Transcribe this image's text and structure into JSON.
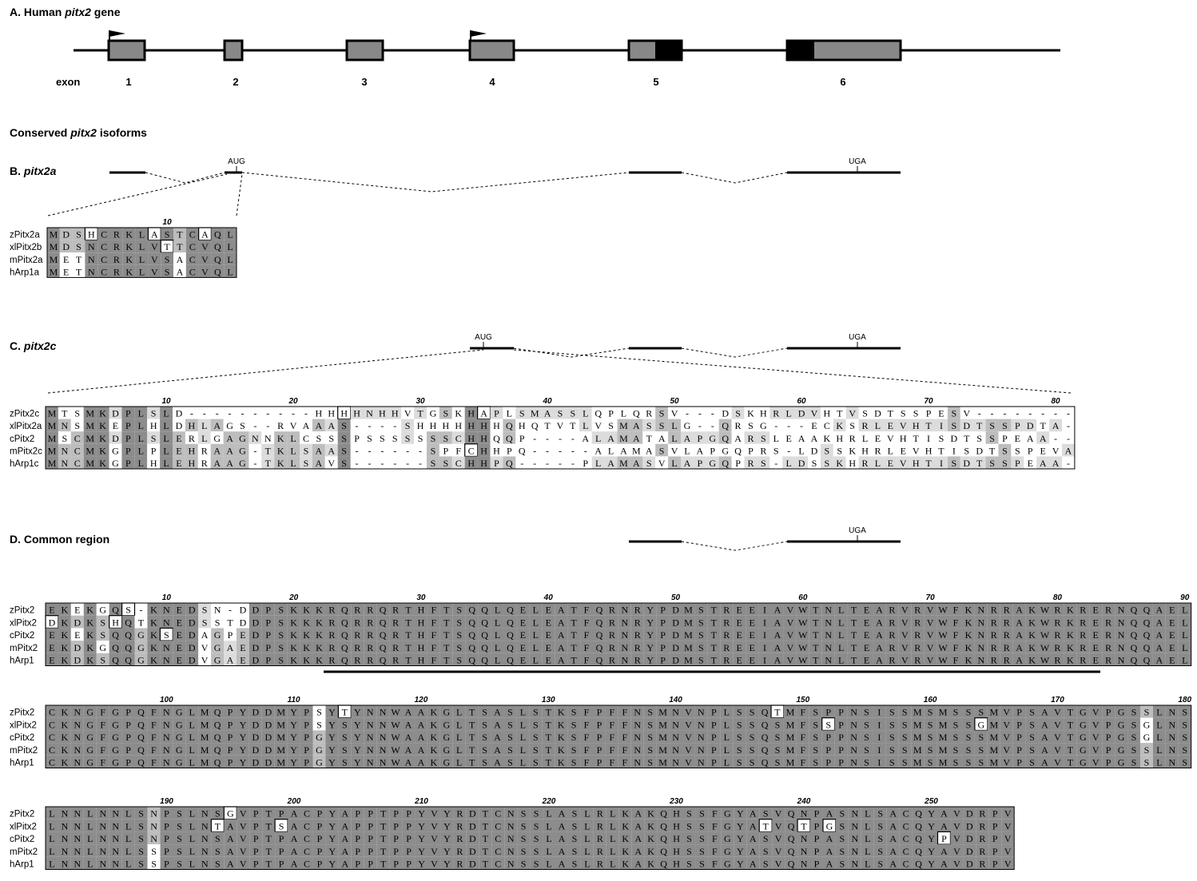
{
  "figure": {
    "panelA": {
      "letter": "A.",
      "title_pre": "Human ",
      "title_italic": "pitx2",
      "title_post": " gene",
      "exon_label": "exon",
      "exons": [
        "1",
        "2",
        "3",
        "4",
        "5",
        "6"
      ]
    },
    "conserved_heading_pre": "Conserved ",
    "conserved_heading_italic": "pitx2",
    "conserved_heading_post": " isoforms",
    "panelB": {
      "letter": "B.",
      "title_italic": "pitx2a",
      "start": "AUG",
      "stop": "UGA"
    },
    "panelC": {
      "letter": "C.",
      "title_italic": "pitx2c",
      "start": "AUG",
      "stop": "UGA"
    },
    "panelD": {
      "letter": "D.",
      "title": "Common region",
      "stop": "UGA"
    }
  },
  "alignments": {
    "pitx2a": {
      "rulers": [
        "10"
      ],
      "rows": [
        {
          "name": "zPitx2a",
          "seq": "MDSHCRKLASTCAQL"
        },
        {
          "name": "xlPitx2b",
          "seq": "MDSNCRKLVTTCVQL"
        },
        {
          "name": "mPitx2a",
          "seq": "METNCRKLVSACVQL"
        },
        {
          "name": "hArp1a",
          "seq": "METNCRKLVSACVQL"
        }
      ]
    },
    "pitx2c": {
      "rulers": [
        "10",
        "20",
        "30",
        "40",
        "50",
        "60",
        "70",
        "80"
      ],
      "rows": [
        {
          "name": "zPitx2c",
          "seq": "MTSMKDPLSLD----------HHHHNHHVTGSKHAPLSMASSLQPLQRSV---DSKHRLDVHTVSDTSSPESV"
        },
        {
          "name": "xlPitx2a",
          "seq": "MNSMKEPLHLDHLAGS--RVAAAS----SHHHHHHHQHQTVTLVSMASSLG--QRSG---ECKSRLEVHTISDTSSPDTA"
        },
        {
          "name": "cPitx2",
          "seq": "MSCMKDPLSLERLGAGNNKLCSSSPSSSSSSSCHHQQP----ALAMATALAPGQARSLEAAKHRLEVHTISDTSSPEAA"
        },
        {
          "name": "mPitx2c",
          "seq": "MNCMKGPLPLEHRAAG-TKLSAAS------SPFCHHPQ-----ALAMASVLAPGQPRS-LDSSKHRLEVHTISDTSSPEVA"
        },
        {
          "name": "hArp1c",
          "seq": "MNCMKGPLHLEHRAAG-TKLSAVS------SSCHHPQ-----PLAMASVLAPGQPRS-LDSSKHRLEVHTISDTSSPEAA"
        }
      ]
    },
    "common1": {
      "rulers": [
        "10",
        "20",
        "30",
        "40",
        "50",
        "60",
        "70",
        "80",
        "90"
      ],
      "rows": [
        {
          "name": "zPitx2",
          "seq": "EKEKGQS-KNEDSN-DDPSKKKRQRRQRTHFTSQQLQELEATFQRNRYPDMSTREEIAVWTNLTEARVRVWFKNRRAKWRKRERNQQAEL"
        },
        {
          "name": "xlPitx2",
          "seq": "DKDKSHQTKNEDSSTDDPSKKKRQRRQRTHFTSQQLQELEATFQRNRYPDMSTREEIAVWTNLTEARVRVWFKNRRAKWRKRERNQQAEL"
        },
        {
          "name": "cPitx2",
          "seq": "EKEKSQQGKSEDAGPEDPSKKKRQRRQRTHFTSQQLQELEATFQRNRYPDMSTREEIAVWTNLTEARVRVWFKNRRAKWRKRERNQQAEL"
        },
        {
          "name": "mPitx2",
          "seq": "EKDKGQQGKNEDVGAEDPSKKKRQRRQRTHFTSQQLQELEATFQRNRYPDMSTREEIAVWTNLTEARVRVWFKNRRAKWRKRERNQQAEL"
        },
        {
          "name": "hArp1",
          "seq": "EKDKSQQGKNEDVGAEDPSKKKRQRRQRTHFTSQQLQELEATFQRNRYPDMSTREEIAVWTNLTEARVRVWFKNRRAKWRKRERNQQAEL"
        }
      ]
    },
    "common2": {
      "rulers": [
        "100",
        "110",
        "120",
        "130",
        "140",
        "150",
        "160",
        "170",
        "180"
      ],
      "rows": [
        {
          "name": "zPitx2",
          "seq": "CKNGFGPQFNGLMQPYDDMYPSYTYNNWAAKGLTSASLSTKSFPFFNSMNVNPLSSQTMFSPPNSISSMSMSSSMVPSAVTGVPGSSLNS"
        },
        {
          "name": "xlPitx2",
          "seq": "CKNGFGPQFNGLMQPYDDMYPSYSYNNWAAKGLTSASLSTKSFPFFNSMNVNPLSSQSMFSSPNSISSMSMSSGMVPSAVTGVPGSGLNS"
        },
        {
          "name": "cPitx2",
          "seq": "CKNGFGPQFNGLMQPYDDMYPGYSYNNWAAKGLTSASLSTKSFPFFNSMNVNPLSSQSMFSPPNSISSMSMSSSMVPSAVTGVPGSGLNS"
        },
        {
          "name": "mPitx2",
          "seq": "CKNGFGPQFNGLMQPYDDMYPGYSYNNWAAKGLTSASLSTKSFPFFNSMNVNPLSSQSMFSPPNSISSMSMSSSMVPSAVTGVPGSSLNS"
        },
        {
          "name": "hArp1",
          "seq": "CKNGFGPQFNGLMQPYDDMYPGYSYNNWAAKGLTSASLSTKSFPFFNSMNVNPLSSQSMFSPPNSISSMSMSSSMVPSAVTGVPGSSLNS"
        }
      ]
    },
    "common3": {
      "rulers": [
        "190",
        "200",
        "210",
        "220",
        "230",
        "240",
        "250"
      ],
      "rows": [
        {
          "name": "zPitx2",
          "seq": "LNNLNNLSNPSLNSGVPTPACPYAPPTPPYVYRDTCNSSLASLRLKAKQHSSFGYASVQNPASNLSACQYAVDRPV"
        },
        {
          "name": "xlPitx2",
          "seq": "LNNLNNLSNPSLNTAVPTSACPYAPPTPPYVYRDTCNSSLASLRLKAKQHSSFGYATVQTPGSNLSACQYAVDRPV"
        },
        {
          "name": "cPitx2",
          "seq": "LNNLNNLSNPSLNSAVPTPACPYAPPTPPYVYRDTCNSSLASLRLKAKQHSSFGYASVQNPASNLSACQYPVDRPV"
        },
        {
          "name": "mPitx2",
          "seq": "LNNLNNLSSPSLNSAVPTPACPYAPPTPPYVYRDTCNSSLASLRLKAKQHSSFGYASVQNPASNLSACQYAVDRPV"
        },
        {
          "name": "hArp1",
          "seq": "LNNLNNLSSPSLNSAVPTPACPYAPPTPPYVYRDTCNSSLASLRLKAKQHSSFGYASVQNPASNLSACQYAVDRPV"
        }
      ]
    }
  }
}
